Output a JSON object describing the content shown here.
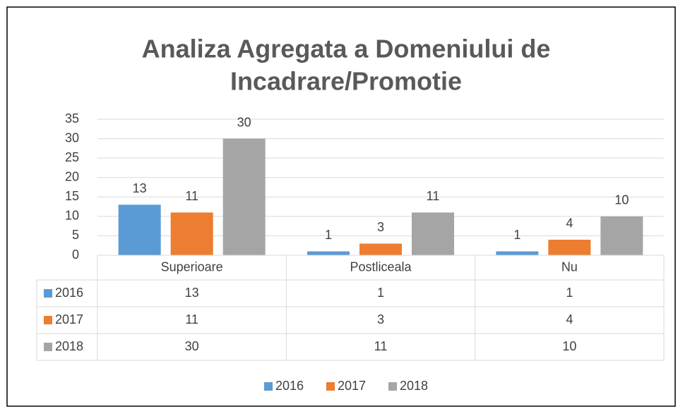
{
  "chart_data": {
    "type": "bar",
    "title": [
      "Analiza Agregata a Domeniului de",
      "Incadrare/Promotie"
    ],
    "categories": [
      "Superioare",
      "Postliceala",
      "Nu"
    ],
    "series": [
      {
        "name": "2016",
        "color": "#5b9bd5",
        "values": [
          13,
          1,
          1
        ]
      },
      {
        "name": "2017",
        "color": "#ed7d31",
        "values": [
          11,
          3,
          4
        ]
      },
      {
        "name": "2018",
        "color": "#a5a5a5",
        "values": [
          30,
          11,
          10
        ]
      }
    ],
    "ylim": [
      0,
      35
    ],
    "yticks": [
      0,
      5,
      10,
      15,
      20,
      25,
      30,
      35
    ],
    "grid": true,
    "legend": "bottom",
    "data_table": true
  }
}
